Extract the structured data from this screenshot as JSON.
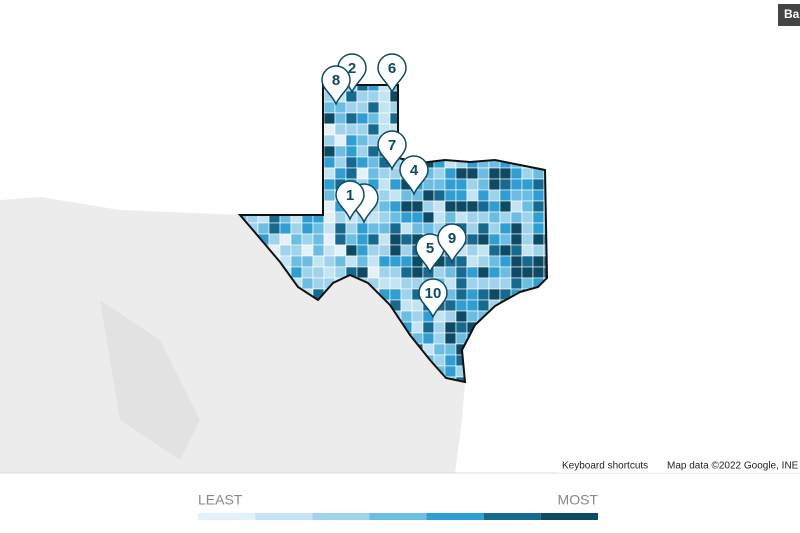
{
  "map": {
    "button": "Ba",
    "markers": [
      "1",
      "2",
      "4",
      "5",
      "6",
      "7",
      "8",
      "9",
      "10"
    ],
    "attribution": {
      "shortcuts": "Keyboard shortcuts",
      "map_data": "Map data ©2022 Google, INE"
    },
    "legend": {
      "low": "LEAST",
      "high": "MOST",
      "colors": [
        "#e3f2fa",
        "#c4e4f4",
        "#9fd3ec",
        "#6cbde2",
        "#2f9fd3",
        "#176a8f",
        "#0d4a63"
      ]
    }
  }
}
